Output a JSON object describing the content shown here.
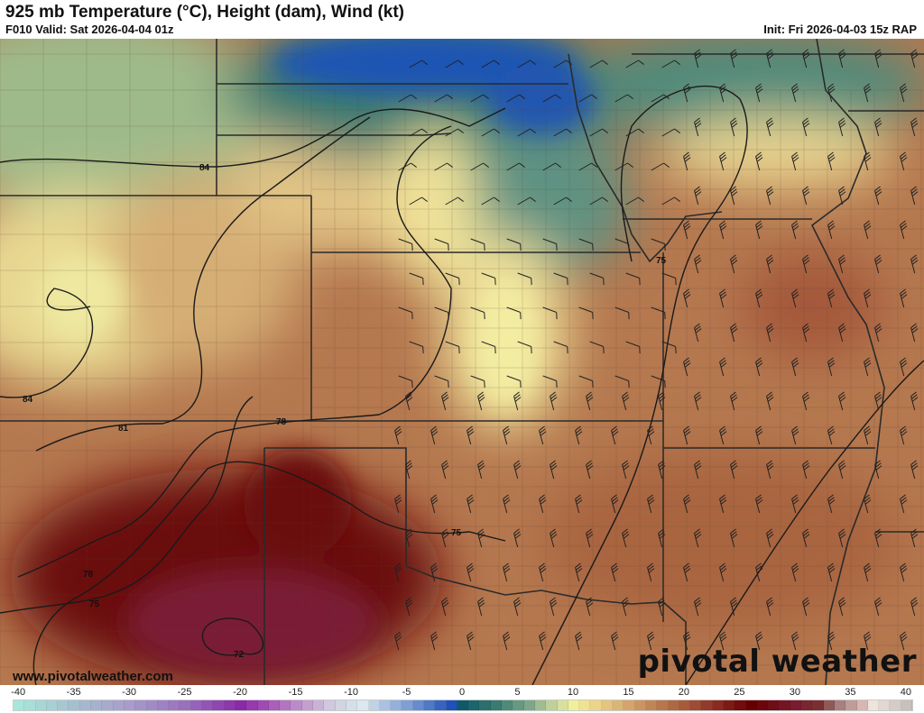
{
  "header": {
    "title": "925 mb Temperature (°C), Height (dam), Wind (kt)",
    "valid": "F010 Valid: Sat 2026-04-04 01z",
    "init": "Init: Fri 2026-04-03 15z RAP"
  },
  "branding": {
    "url": "www.pivotalweather.com",
    "logo": "pivotal weather"
  },
  "contours": {
    "unit": "dam",
    "labels": [
      "84",
      "84",
      "81",
      "78",
      "78",
      "75",
      "75",
      "75",
      "72"
    ]
  },
  "colorbar": {
    "min": -40,
    "max": 40,
    "step": 1,
    "tick_labels": [
      "-40",
      "-35",
      "-30",
      "-25",
      "-20",
      "-15",
      "-10",
      "-5",
      "0",
      "5",
      "10",
      "15",
      "20",
      "25",
      "30",
      "35",
      "40"
    ],
    "stops": [
      [
        -40,
        "#a8e6da"
      ],
      [
        -35,
        "#a6bfd0"
      ],
      [
        -30,
        "#a79ccb"
      ],
      [
        -25,
        "#9a70bd"
      ],
      [
        -20,
        "#8a2aa8"
      ],
      [
        -18,
        "#a24ab4"
      ],
      [
        -15,
        "#bb8ac8"
      ],
      [
        -12,
        "#cfc8de"
      ],
      [
        -10,
        "#d5e0e6"
      ],
      [
        -9,
        "#dce8ef"
      ],
      [
        -8,
        "#c0d2e6"
      ],
      [
        -5,
        "#7e9fd6"
      ],
      [
        -1,
        "#2050b8"
      ],
      [
        0,
        "#0f5a6a"
      ],
      [
        3,
        "#3a7a70"
      ],
      [
        6,
        "#7ea78a"
      ],
      [
        8,
        "#c0d09a"
      ],
      [
        10,
        "#f2ef9c"
      ],
      [
        12,
        "#ecd488"
      ],
      [
        15,
        "#d3a56c"
      ],
      [
        18,
        "#b8764c"
      ],
      [
        21,
        "#9e4c34"
      ],
      [
        24,
        "#7e1a16"
      ],
      [
        26,
        "#660000"
      ],
      [
        30,
        "#7a1c30"
      ],
      [
        32,
        "#7a3030"
      ],
      [
        34,
        "#a88080"
      ],
      [
        36,
        "#d6b8b0"
      ],
      [
        37,
        "#eee4dc"
      ],
      [
        40,
        "#c8c0bc"
      ]
    ]
  }
}
